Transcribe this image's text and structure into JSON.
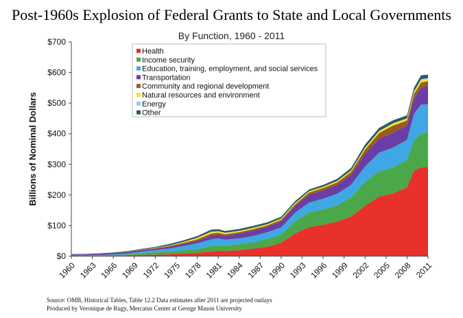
{
  "title": "Post-1960s Explosion of Federal Grants to State and Local Governments",
  "subtitle": "By Function, 1960 - 2011",
  "source_note": "Source: OMB, Historical Tables, Table 12.2 Data estimates after 2011 are projected outlays",
  "credit_note": "Produced by Veronique de Rugy, Mercatus Center at George Mason University",
  "chart_data": {
    "type": "area",
    "stacked": true,
    "ylabel": "Billions of Nominal Dollars",
    "ylim": [
      0,
      700
    ],
    "y_ticks": [
      0,
      100,
      200,
      300,
      400,
      500,
      600,
      700
    ],
    "y_tick_labels": [
      "$0",
      "$100",
      "$200",
      "$300",
      "$400",
      "$500",
      "$600",
      "$700"
    ],
    "xlim": [
      1960,
      2011
    ],
    "x_ticks": [
      1960,
      1963,
      1966,
      1969,
      1972,
      1975,
      1978,
      1981,
      1984,
      1987,
      1990,
      1993,
      1996,
      1999,
      2002,
      2005,
      2008,
      2011
    ],
    "legend_position": "top-left",
    "grid": false,
    "x": [
      1960,
      1962,
      1964,
      1966,
      1968,
      1970,
      1972,
      1974,
      1976,
      1978,
      1980,
      1981,
      1982,
      1984,
      1986,
      1988,
      1990,
      1992,
      1994,
      1996,
      1998,
      2000,
      2002,
      2004,
      2006,
      2008,
      2009,
      2010,
      2011
    ],
    "series": [
      {
        "name": "Health",
        "color": "#e8312b",
        "values": [
          0.2,
          0.3,
          0.6,
          1,
          2,
          4,
          5,
          6,
          9,
          11,
          15,
          17,
          17,
          20,
          25,
          31,
          44,
          75,
          95,
          103,
          113,
          130,
          165,
          195,
          205,
          225,
          280,
          290,
          292
        ]
      },
      {
        "name": "Income security",
        "color": "#4aa84a",
        "values": [
          2,
          2.3,
          2.5,
          2.8,
          3.5,
          5.8,
          7.5,
          9,
          11,
          12,
          18,
          19,
          18,
          20,
          21,
          25,
          27,
          40,
          48,
          50,
          53,
          63,
          78,
          83,
          85,
          90,
          100,
          110,
          115
        ]
      },
      {
        "name": "Education, training, employment, and social services",
        "color": "#3fa7e3",
        "values": [
          0.5,
          0.7,
          1,
          2,
          3,
          5,
          7,
          10,
          13,
          19,
          22,
          22,
          19,
          18,
          20,
          22,
          23,
          27,
          32,
          35,
          38,
          40,
          50,
          60,
          65,
          65,
          85,
          95,
          90
        ]
      },
      {
        "name": "Transportation",
        "color": "#6a3ea6",
        "values": [
          3,
          3.3,
          4.2,
          4.2,
          4.3,
          4.6,
          5,
          5.5,
          7,
          8,
          13,
          13,
          13,
          16,
          18,
          18,
          20,
          22,
          26,
          27,
          29,
          33,
          42,
          45,
          48,
          48,
          50,
          55,
          60
        ]
      },
      {
        "name": "Community and regional development",
        "color": "#9c5a1d",
        "values": [
          0.1,
          0.2,
          0.3,
          0.6,
          1,
          1.5,
          2,
          3,
          3.5,
          5,
          6,
          5.5,
          4.5,
          4.5,
          4.5,
          4.5,
          5,
          5.5,
          7,
          7.5,
          8,
          9,
          13,
          19,
          24,
          15,
          15,
          17,
          15
        ]
      },
      {
        "name": "Natural resources and environment",
        "color": "#f2e626",
        "values": [
          0.1,
          0.1,
          0.1,
          0.2,
          0.3,
          0.4,
          0.8,
          1.5,
          3,
          4.5,
          5.5,
          5,
          4.5,
          4,
          4,
          3.5,
          3.7,
          4,
          4,
          4,
          4.3,
          4.8,
          6,
          6.5,
          6.5,
          6.5,
          7,
          8,
          8
        ]
      },
      {
        "name": "Energy",
        "color": "#9fc6e8",
        "values": [
          0,
          0,
          0,
          0,
          0,
          0,
          0,
          0.1,
          0.2,
          0.3,
          0.5,
          0.5,
          0.4,
          0.4,
          0.4,
          0.4,
          0.4,
          0.4,
          0.4,
          0.4,
          0.4,
          0.4,
          0.5,
          0.5,
          0.6,
          0.7,
          1.5,
          3,
          2
        ]
      },
      {
        "name": "Other",
        "color": "#2c5a64",
        "values": [
          1,
          1,
          1,
          1.5,
          2,
          2.5,
          3,
          4.5,
          5,
          6,
          6.5,
          6,
          6,
          6,
          6,
          6,
          6,
          6,
          6,
          6,
          7,
          8,
          10,
          10,
          10,
          10,
          12,
          13,
          11
        ]
      }
    ]
  }
}
